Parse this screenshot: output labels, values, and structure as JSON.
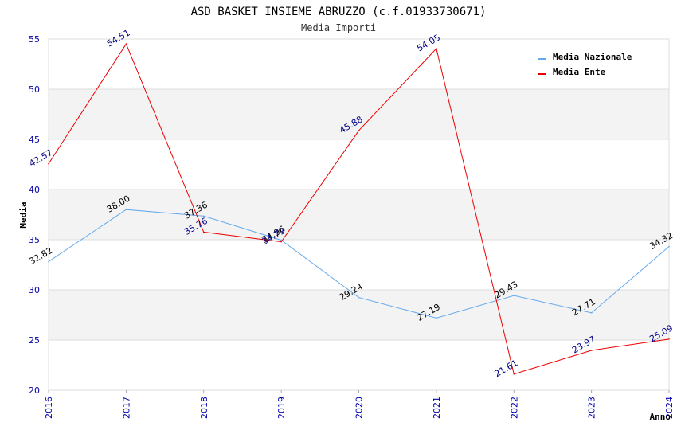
{
  "chart_data": {
    "type": "line",
    "title": "ASD BASKET INSIEME ABRUZZO (c.f.01933730671)",
    "subtitle": "Media Importi",
    "xlabel": "Anno",
    "ylabel": "Media",
    "x": [
      "2016",
      "2017",
      "2018",
      "2019",
      "2020",
      "2021",
      "2022",
      "2023",
      "2024"
    ],
    "ylim": [
      20,
      55
    ],
    "yticks": [
      "20",
      "25",
      "30",
      "35",
      "40",
      "45",
      "50",
      "55"
    ],
    "series": [
      {
        "name": "Media Nazionale",
        "color": "#66aaee",
        "label_color": "#000000",
        "values": [
          32.82,
          38.0,
          37.36,
          34.96,
          29.24,
          27.19,
          29.43,
          27.71,
          34.32
        ],
        "labels": [
          "32.82",
          "38.00",
          "37.36",
          "34.96",
          "29.24",
          "27.19",
          "29.43",
          "27.71",
          "34.32"
        ]
      },
      {
        "name": "Media Ente",
        "color": "#ee0000",
        "label_color": "#000088",
        "values": [
          42.57,
          54.51,
          35.76,
          34.79,
          45.88,
          54.05,
          21.61,
          23.97,
          25.09
        ],
        "labels": [
          "42.57",
          "54.51",
          "35.76",
          "34.79",
          "45.88",
          "54.05",
          "21.61",
          "23.97",
          "25.09"
        ]
      }
    ],
    "legend_position": "top-right",
    "grid": true
  }
}
